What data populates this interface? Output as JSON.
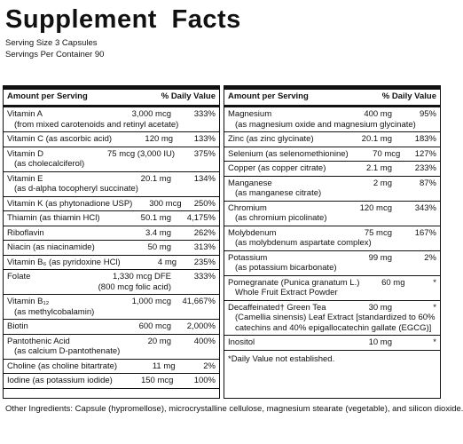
{
  "title": "Supplement Facts",
  "serving_size": "Serving Size 3 Capsules",
  "servings_per_container": "Servings Per Container 90",
  "left": {
    "header": [
      "Amount per Serving",
      "% Daily Value"
    ],
    "rows": [
      {
        "name": "Vitamin A",
        "amount": "3,000 mcg",
        "dv": "333%",
        "sub": [
          "(from mixed carotenoids and retinyl acetate)"
        ]
      },
      {
        "name": "Vitamin C (as ascorbic acid)",
        "amount": "120 mg",
        "dv": "133%"
      },
      {
        "name": "Vitamin D",
        "amount": "75 mcg (3,000 IU)",
        "dv": "375%",
        "sub": [
          "(as cholecalciferol)"
        ]
      },
      {
        "name": "Vitamin E",
        "amount": "20.1 mg",
        "dv": "134%",
        "sub": [
          "(as d-alpha tocopheryl succinate)"
        ]
      },
      {
        "name": "Vitamin K (as phytonadione USP)",
        "amount": "300 mcg",
        "dv": "250%"
      },
      {
        "name": "Thiamin (as thiamin HCl)",
        "amount": "50.1 mg",
        "dv": "4,175%"
      },
      {
        "name": "Riboflavin",
        "amount": "3.4 mg",
        "dv": "262%"
      },
      {
        "name": "Niacin (as niacinamide)",
        "amount": "50 mg",
        "dv": "313%"
      },
      {
        "name": "Vitamin B₆ (as pyridoxine HCl)",
        "amount": "4 mg",
        "dv": "235%"
      },
      {
        "name": "Folate",
        "amount": "1,330 mcg DFE",
        "dv": "333%",
        "amount_sub": "(800 mcg folic acid)"
      },
      {
        "name": "Vitamin B₁₂",
        "amount": "1,000 mcg",
        "dv": "41,667%",
        "sub": [
          "(as methylcobalamin)"
        ]
      },
      {
        "name": "Biotin",
        "amount": "600 mcg",
        "dv": "2,000%"
      },
      {
        "name": "Pantothenic Acid",
        "amount": "20 mg",
        "dv": "400%",
        "sub": [
          "(as calcium D-pantothenate)"
        ]
      },
      {
        "name": "Choline (as choline bitartrate)",
        "amount": "11 mg",
        "dv": "2%"
      },
      {
        "name": "Iodine (as potassium iodide)",
        "amount": "150 mcg",
        "dv": "100%"
      }
    ]
  },
  "right": {
    "header": [
      "Amount per Serving",
      "% Daily Value"
    ],
    "rows": [
      {
        "name": "Magnesium",
        "amount": "400 mg",
        "dv": "95%",
        "sub": [
          "(as magnesium oxide and magnesium glycinate)"
        ]
      },
      {
        "name": "Zinc (as zinc glycinate)",
        "amount": "20.1 mg",
        "dv": "183%"
      },
      {
        "name": "Selenium (as selenomethionine)",
        "amount": "70 mcg",
        "dv": "127%"
      },
      {
        "name": "Copper (as copper citrate)",
        "amount": "2.1 mg",
        "dv": "233%"
      },
      {
        "name": "Manganese",
        "amount": "2 mg",
        "dv": "87%",
        "sub": [
          "(as manganese citrate)"
        ]
      },
      {
        "name": "Chromium",
        "amount": "120 mcg",
        "dv": "343%",
        "sub": [
          "(as chromium picolinate)"
        ]
      },
      {
        "name": "Molybdenum",
        "amount": "75 mcg",
        "dv": "167%",
        "sub": [
          "(as molybdenum aspartate complex)"
        ]
      },
      {
        "name": "Potassium",
        "amount": "99 mg",
        "dv": "2%",
        "sub": [
          "(as potassium bicarbonate)"
        ]
      },
      {
        "name": "Pomegranate (Punica granatum L.)",
        "amount": "60 mg",
        "dv": "*",
        "sub": [
          "Whole Fruit Extract Powder"
        ]
      },
      {
        "name": "Decaffeinated† Green Tea",
        "amount": "30 mg",
        "dv": "*",
        "sub": [
          "(Camellia sinensis) Leaf Extract [standardized to 60%",
          "catechins and 40% epigallocatechin gallate (EGCG)]"
        ]
      },
      {
        "name": "Inositol",
        "amount": "10 mg",
        "dv": "*"
      }
    ],
    "footnote": "*Daily Value not established."
  },
  "other_ingredients": "Other Ingredients: Capsule (hypromellose), microcrystalline cellulose, magnesium stearate (vegetable), and silicon dioxide."
}
